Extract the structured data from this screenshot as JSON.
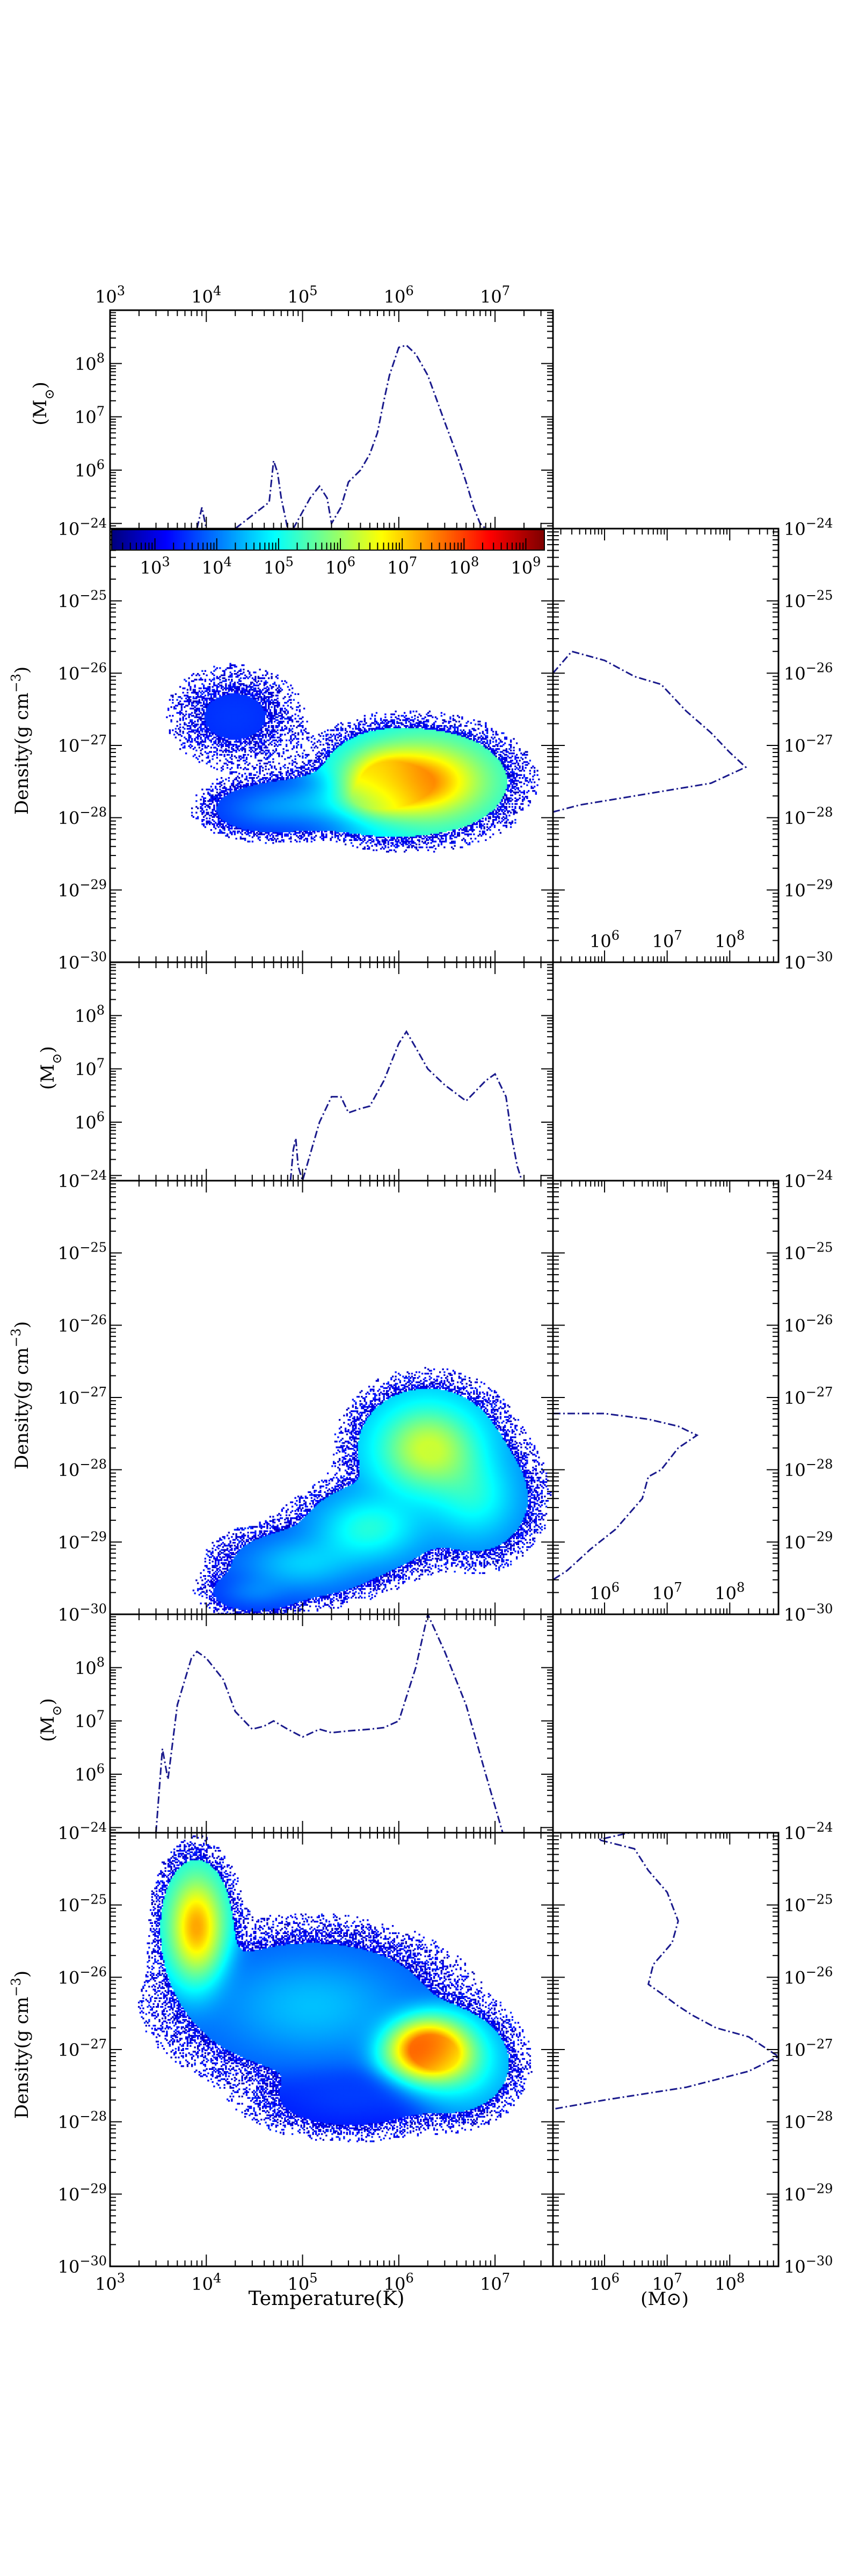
{
  "labels": {
    "ylabel_density": "Density(g cm$^{-3}$)",
    "density_unit_text": "Density(g cm",
    "density_unit_exp": "−3",
    "ylabel_mass": "(M",
    "mass_sun": "⊙",
    "xlabel_temperature": "Temperature(K)",
    "xlabel_mass": "(M⊙)"
  },
  "colors": {
    "profile_line": "#1a1a8c",
    "colormap": [
      "#00007f",
      "#0000ff",
      "#007fff",
      "#00ffff",
      "#7fff7f",
      "#ffff00",
      "#ff7f00",
      "#ff0000",
      "#7f0000"
    ]
  },
  "colorbar": {
    "ticks": [
      3,
      4,
      5,
      6,
      7,
      8,
      9
    ],
    "range": [
      2.3,
      9.3
    ],
    "scale": "log"
  },
  "chart_data": [
    {
      "type": "line",
      "panel": "temperature-mass-histogram-1",
      "x_scale": "log",
      "y_scale": "log",
      "xlim": [
        1000,
        40000000
      ],
      "ylim": [
        80000,
        1000000000
      ],
      "x_ticks": [
        3,
        4,
        5,
        6,
        7
      ],
      "y_ticks": [
        6,
        7,
        8
      ],
      "xlabel": "",
      "ylabel": "(M⊙)",
      "series": [
        {
          "x": [
            1000,
            8000,
            9000,
            10000,
            20000,
            45000,
            50000,
            55000,
            60000,
            70000,
            80000,
            120000,
            150000,
            180000,
            200000,
            250000,
            300000,
            400000,
            500000,
            600000,
            700000,
            800000,
            1000000,
            1200000,
            1500000,
            2000000,
            2500000,
            3000000,
            4000000,
            5000000,
            6000000,
            7000000,
            8000000
          ],
          "y": [
            80000,
            80000,
            200000,
            80000,
            80000,
            250000,
            1500000,
            900000,
            300000,
            80000,
            80000,
            300000,
            500000,
            300000,
            100000,
            200000,
            600000,
            1000000,
            2000000,
            5000000,
            20000000,
            60000000,
            200000000,
            220000000,
            150000000,
            60000000,
            20000000,
            8000000,
            2000000,
            600000,
            200000,
            100000,
            80000
          ]
        }
      ]
    },
    {
      "type": "heatmap",
      "panel": "phase-diagram-1",
      "x_scale": "log",
      "y_scale": "log",
      "xlim": [
        1000,
        40000000
      ],
      "ylim": [
        1e-30,
        1e-24
      ],
      "x_ticks": [
        3,
        4,
        5,
        6,
        7
      ],
      "y_ticks": [
        -30,
        -29,
        -28,
        -27,
        -26,
        -25,
        -24
      ],
      "xlabel": "",
      "ylabel": "Density(g cm$^{-3}$)",
      "blobs": [
        {
          "log_t": 6.2,
          "log_rho": -27.5,
          "sig_t": 0.45,
          "sig_rho": 0.35,
          "w": 1.0,
          "peak_color": 0.72
        },
        {
          "log_t": 5.8,
          "log_rho": -27.5,
          "sig_t": 0.25,
          "sig_rho": 0.3,
          "w": 0.7,
          "peak_color": 0.55
        },
        {
          "log_t": 5.3,
          "log_rho": -27.8,
          "sig_t": 0.5,
          "sig_rho": 0.2,
          "w": 0.55,
          "peak_color": 0.35
        },
        {
          "log_t": 4.6,
          "log_rho": -27.9,
          "sig_t": 0.3,
          "sig_rho": 0.18,
          "w": 0.35,
          "peak_color": 0.3
        },
        {
          "log_t": 4.3,
          "log_rho": -26.6,
          "sig_t": 0.35,
          "sig_rho": 0.35,
          "w": 0.18,
          "peak_color": 0.28
        }
      ]
    },
    {
      "type": "line",
      "panel": "density-mass-histogram-1",
      "x_scale": "log",
      "y_scale": "log",
      "xlim": [
        150000,
        600000000
      ],
      "ylim": [
        1e-30,
        1e-24
      ],
      "x_ticks": [
        6,
        7,
        8
      ],
      "y_ticks": [
        -30,
        -29,
        -28,
        -27,
        -26,
        -25,
        -24
      ],
      "xlabel": "",
      "ylabel": "",
      "series": [
        {
          "x": [
            150000,
            300000,
            1000000,
            3000000,
            8000000,
            20000000,
            50000000,
            100000000,
            180000000,
            50000000,
            3000000,
            400000,
            150000
          ],
          "y": [
            1e-26,
            2e-26,
            1.5e-26,
            9e-27,
            7e-27,
            3e-27,
            1.5e-27,
            8e-28,
            5e-28,
            3e-28,
            2e-28,
            1.5e-28,
            1.2e-28
          ]
        }
      ]
    },
    {
      "type": "line",
      "panel": "temperature-mass-histogram-2",
      "x_scale": "log",
      "y_scale": "log",
      "xlim": [
        1000,
        40000000
      ],
      "ylim": [
        80000,
        1000000000
      ],
      "x_ticks": [
        3,
        4,
        5,
        6,
        7
      ],
      "y_ticks": [
        6,
        7,
        8
      ],
      "xlabel": "",
      "ylabel": "(M⊙)",
      "series": [
        {
          "x": [
            75000,
            80000,
            85000,
            90000,
            100000,
            150000,
            200000,
            250000,
            300000,
            400000,
            500000,
            700000,
            1000000,
            1200000,
            1500000,
            2000000,
            3000000,
            5000000,
            8000000,
            10000000,
            13000000,
            15000000,
            17000000,
            19000000
          ],
          "y": [
            80000,
            300000,
            500000,
            150000,
            80000,
            1000000,
            3000000,
            3000000,
            1500000,
            1800000,
            2000000,
            6000000,
            30000000,
            50000000,
            25000000,
            10000000,
            5000000,
            2500000,
            6000000,
            8000000,
            3000000,
            500000,
            150000,
            80000
          ]
        }
      ]
    },
    {
      "type": "heatmap",
      "panel": "phase-diagram-2",
      "x_scale": "log",
      "y_scale": "log",
      "xlim": [
        1000,
        40000000
      ],
      "ylim": [
        1e-30,
        1e-24
      ],
      "x_ticks": [
        3,
        4,
        5,
        6,
        7
      ],
      "y_ticks": [
        -30,
        -29,
        -28,
        -27,
        -26,
        -25,
        -24
      ],
      "xlabel": "",
      "ylabel": "Density(g cm$^{-3}$)",
      "blobs": [
        {
          "log_t": 6.3,
          "log_rho": -27.7,
          "sig_t": 0.35,
          "sig_rho": 0.4,
          "w": 1.0,
          "peak_color": 0.55
        },
        {
          "log_t": 6.8,
          "log_rho": -28.4,
          "sig_t": 0.3,
          "sig_rho": 0.4,
          "w": 0.6,
          "peak_color": 0.45
        },
        {
          "log_t": 5.7,
          "log_rho": -28.8,
          "sig_t": 0.35,
          "sig_rho": 0.3,
          "w": 0.7,
          "peak_color": 0.45
        },
        {
          "log_t": 5.0,
          "log_rho": -29.3,
          "sig_t": 0.4,
          "sig_rho": 0.25,
          "w": 0.6,
          "peak_color": 0.38
        },
        {
          "log_t": 4.5,
          "log_rho": -29.7,
          "sig_t": 0.25,
          "sig_rho": 0.15,
          "w": 0.45,
          "peak_color": 0.3
        }
      ]
    },
    {
      "type": "line",
      "panel": "density-mass-histogram-2",
      "x_scale": "log",
      "y_scale": "log",
      "xlim": [
        150000,
        600000000
      ],
      "ylim": [
        1e-30,
        1e-24
      ],
      "x_ticks": [
        6,
        7,
        8
      ],
      "y_ticks": [
        -30,
        -29,
        -28,
        -27,
        -26,
        -25,
        -24
      ],
      "xlabel": "",
      "ylabel": "",
      "series": [
        {
          "x": [
            150000,
            1000000,
            5000000,
            15000000,
            30000000,
            15000000,
            8000000,
            5000000,
            4000000,
            3000000,
            1500000,
            600000,
            250000,
            150000
          ],
          "y": [
            6e-28,
            6e-28,
            5e-28,
            4e-28,
            3e-28,
            2e-28,
            1e-28,
            8e-29,
            4e-29,
            3e-29,
            1.5e-29,
            8e-30,
            4e-30,
            3e-30
          ]
        }
      ]
    },
    {
      "type": "line",
      "panel": "temperature-mass-histogram-3",
      "x_scale": "log",
      "y_scale": "log",
      "xlim": [
        1000,
        40000000
      ],
      "ylim": [
        80000,
        1000000000
      ],
      "x_ticks": [
        3,
        4,
        5,
        6,
        7
      ],
      "y_ticks": [
        6,
        7,
        8
      ],
      "xlabel": "",
      "ylabel": "(M⊙)",
      "series": [
        {
          "x": [
            3000,
            3500,
            4000,
            5000,
            7000,
            8000,
            10000,
            15000,
            20000,
            30000,
            40000,
            50000,
            70000,
            100000,
            150000,
            200000,
            300000,
            500000,
            700000,
            1000000,
            1500000,
            2000000,
            3000000,
            5000000,
            8000000,
            12000000
          ],
          "y": [
            80000,
            3000000,
            800000,
            20000000,
            150000000,
            200000000,
            150000000,
            60000000,
            15000000,
            7000000,
            8000000,
            10000000,
            7000000,
            5000000,
            7000000,
            6000000,
            6500000,
            7000000,
            7500000,
            10000000,
            100000000,
            1000000000,
            200000000,
            20000000,
            1000000,
            80000
          ]
        }
      ]
    },
    {
      "type": "heatmap",
      "panel": "phase-diagram-3",
      "x_scale": "log",
      "y_scale": "log",
      "xlim": [
        1000,
        40000000
      ],
      "ylim": [
        1e-30,
        1e-24
      ],
      "x_ticks": [
        3,
        4,
        5,
        6,
        7
      ],
      "y_ticks": [
        -30,
        -29,
        -28,
        -27,
        -26,
        -25,
        -24
      ],
      "xlabel": "Temperature(K)",
      "ylabel": "Density(g cm$^{-3}$)",
      "blobs": [
        {
          "log_t": 3.9,
          "log_rho": -25.3,
          "sig_t": 0.18,
          "sig_rho": 0.45,
          "w": 1.0,
          "peak_color": 0.68
        },
        {
          "log_t": 5.1,
          "log_rho": -26.4,
          "sig_t": 0.7,
          "sig_rho": 0.5,
          "w": 0.55,
          "peak_color": 0.38
        },
        {
          "log_t": 6.3,
          "log_rho": -27.0,
          "sig_t": 0.25,
          "sig_rho": 0.25,
          "w": 1.0,
          "peak_color": 0.82
        },
        {
          "log_t": 6.6,
          "log_rho": -27.2,
          "sig_t": 0.3,
          "sig_rho": 0.35,
          "w": 0.6,
          "peak_color": 0.5
        },
        {
          "log_t": 5.5,
          "log_rho": -27.7,
          "sig_t": 0.5,
          "sig_rho": 0.25,
          "w": 0.3,
          "peak_color": 0.25
        }
      ]
    },
    {
      "type": "line",
      "panel": "density-mass-histogram-3",
      "x_scale": "log",
      "y_scale": "log",
      "xlim": [
        150000,
        600000000
      ],
      "ylim": [
        1e-30,
        1e-24
      ],
      "x_ticks": [
        6,
        7,
        8
      ],
      "y_ticks": [
        -30,
        -29,
        -28,
        -27,
        -26,
        -25,
        -24
      ],
      "xlabel": "(M⊙)",
      "ylabel": "",
      "series": [
        {
          "x": [
            600000,
            1500000,
            2500000,
            800000,
            3000000,
            5000000,
            10000000,
            15000000,
            12000000,
            6000000,
            5000000,
            8000000,
            15000000,
            25000000,
            60000000,
            200000000,
            600000000,
            200000000,
            20000000,
            1000000,
            150000
          ],
          "y": [
            1e-24,
            1.2e-24,
            1e-24,
            8e-25,
            6e-25,
            3e-25,
            1.5e-25,
            6e-26,
            3e-26,
            1.5e-26,
            8e-27,
            6e-27,
            4e-27,
            3e-27,
            2e-27,
            1.5e-27,
            8e-28,
            5e-28,
            3e-28,
            2e-28,
            1.5e-28
          ]
        }
      ]
    }
  ]
}
